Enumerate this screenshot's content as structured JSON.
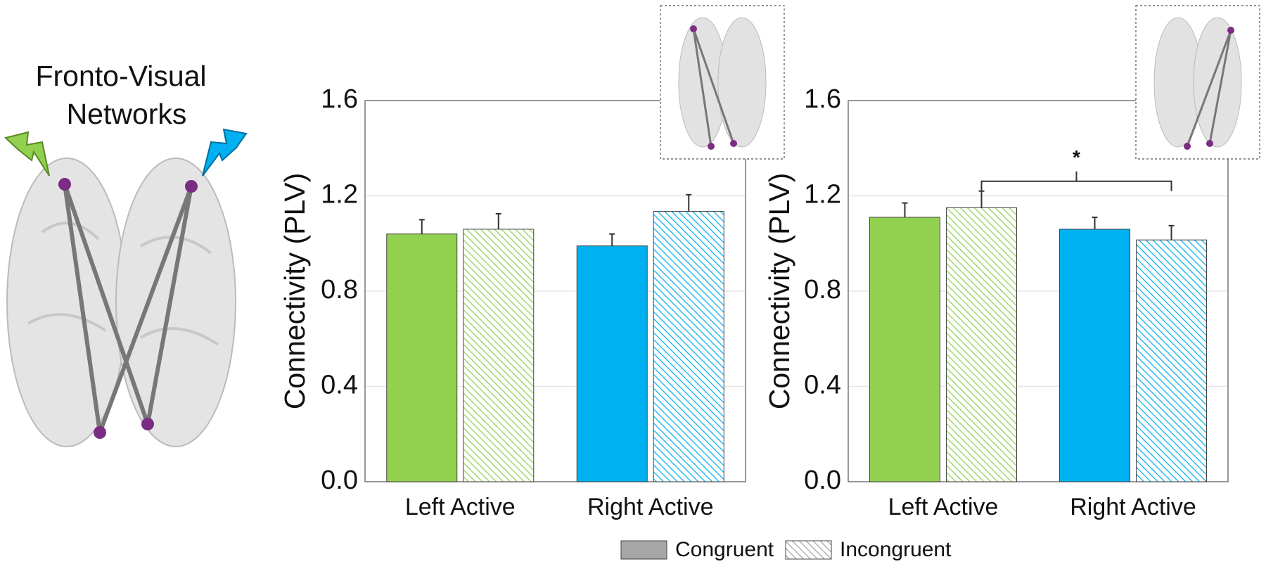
{
  "figure": {
    "title_lines": [
      "Fronto-Visual",
      "Networks"
    ]
  },
  "chart_data": [
    {
      "type": "bar",
      "ylabel": "Connectivity (PLV)",
      "categories": [
        "Left Active",
        "Right Active"
      ],
      "category_colors": [
        "#92d050",
        "#00b0f0"
      ],
      "series": [
        {
          "name": "Congruent",
          "color": "#a6a6a6",
          "hatched": false,
          "values": [
            1.04,
            0.99
          ],
          "errors": [
            0.06,
            0.05
          ]
        },
        {
          "name": "Incongruent",
          "color": "#a6a6a6",
          "hatched": true,
          "values": [
            1.06,
            1.135
          ],
          "errors": [
            0.065,
            0.07
          ]
        }
      ],
      "ylim": [
        0,
        1.6
      ],
      "yticks": [
        {
          "value": 0,
          "label": "0.0"
        },
        0.4,
        0.8,
        1.2,
        1.6
      ],
      "grid": true
    },
    {
      "type": "bar",
      "ylabel": "Connectivity (PLV)",
      "categories": [
        "Left Active",
        "Right Active"
      ],
      "category_colors": [
        "#92d050",
        "#00b0f0"
      ],
      "series": [
        {
          "name": "Congruent",
          "color": "#a6a6a6",
          "hatched": false,
          "values": [
            1.11,
            1.06
          ],
          "errors": [
            0.06,
            0.05
          ]
        },
        {
          "name": "Incongruent",
          "color": "#a6a6a6",
          "hatched": true,
          "values": [
            1.15,
            1.015
          ],
          "errors": [
            0.07,
            0.06
          ]
        }
      ],
      "ylim": [
        0,
        1.6
      ],
      "yticks": [
        {
          "value": 0,
          "label": "0.0"
        },
        0.4,
        0.8,
        1.2,
        1.6
      ],
      "grid": true,
      "annotations": [
        {
          "text": "*"
        }
      ]
    }
  ]
}
